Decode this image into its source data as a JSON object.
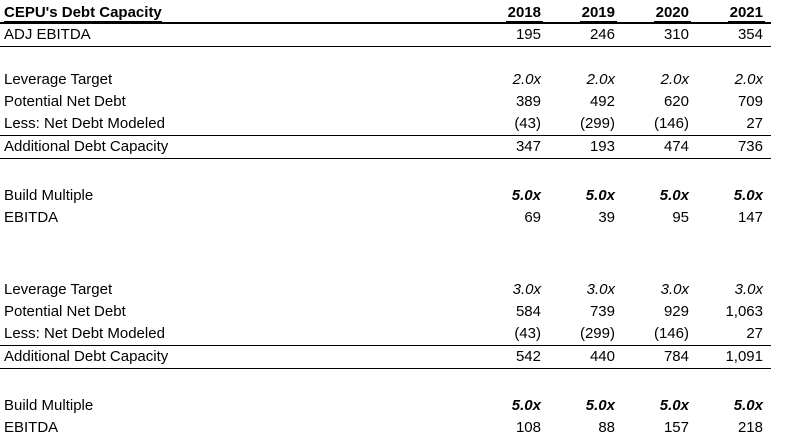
{
  "page": {
    "background_color": "#ffffff",
    "text_color": "#000000",
    "line_color": "#000000"
  },
  "table": {
    "title": "CEPU's Debt Capacity",
    "years": [
      "2018",
      "2019",
      "2020",
      "2021"
    ],
    "rows": [
      {
        "label": "ADJ EBITDA",
        "values": [
          "195",
          "246",
          "310",
          "354"
        ],
        "border_bottom": "thin"
      },
      {
        "type": "blank",
        "size": "sm"
      },
      {
        "label": "Leverage Target",
        "values": [
          "2.0x",
          "2.0x",
          "2.0x",
          "2.0x"
        ],
        "format": "italic"
      },
      {
        "label": "Potential Net Debt",
        "values": [
          "389",
          "492",
          "620",
          "709"
        ]
      },
      {
        "label": "Less: Net Debt Modeled",
        "values": [
          "(43)",
          "(299)",
          "(146)",
          "27"
        ],
        "border_bottom": "thin"
      },
      {
        "label": "Additional Debt Capacity",
        "values": [
          "347",
          "193",
          "474",
          "736"
        ],
        "border_bottom": "thin"
      },
      {
        "type": "blank",
        "size": "md"
      },
      {
        "label": "Build Multiple",
        "values": [
          "5.0x",
          "5.0x",
          "5.0x",
          "5.0x"
        ],
        "format": "bold-italic"
      },
      {
        "label": "EBITDA",
        "values": [
          "69",
          "39",
          "95",
          "147"
        ]
      },
      {
        "type": "blank",
        "size": "lg"
      },
      {
        "label": "Leverage Target",
        "values": [
          "3.0x",
          "3.0x",
          "3.0x",
          "3.0x"
        ],
        "format": "italic"
      },
      {
        "label": "Potential Net Debt",
        "values": [
          "584",
          "739",
          "929",
          "1,063"
        ]
      },
      {
        "label": "Less: Net Debt Modeled",
        "values": [
          "(43)",
          "(299)",
          "(146)",
          "27"
        ],
        "border_bottom": "thin"
      },
      {
        "label": "Additional Debt Capacity",
        "values": [
          "542",
          "440",
          "784",
          "1,091"
        ],
        "border_bottom": "thin"
      },
      {
        "type": "blank",
        "size": "md"
      },
      {
        "label": "Build Multiple",
        "values": [
          "5.0x",
          "5.0x",
          "5.0x",
          "5.0x"
        ],
        "format": "bold-italic"
      },
      {
        "label": "EBITDA",
        "values": [
          "108",
          "88",
          "157",
          "218"
        ]
      }
    ]
  }
}
